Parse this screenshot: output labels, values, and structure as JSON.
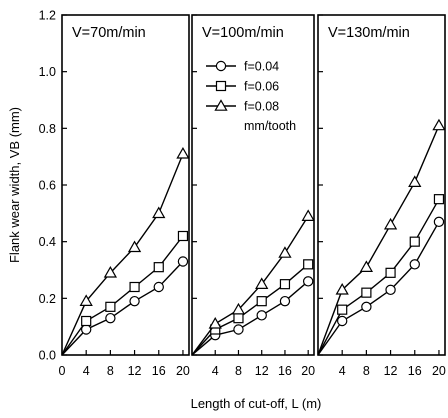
{
  "chart_data": {
    "type": "line",
    "ylabel": "Flank wear width, VB (mm)",
    "xlabel": "Length of cut-off, L (m)",
    "ylim": [
      0,
      1.2
    ],
    "yticks": [
      "0.0",
      "0.2",
      "0.4",
      "0.6",
      "0.8",
      "1.0",
      "1.2"
    ],
    "xlim": [
      0,
      21
    ],
    "xticks": [
      "0",
      "4",
      "8",
      "12",
      "16",
      "20"
    ],
    "grid": false,
    "legend": {
      "panel": 2,
      "placement": "top-left",
      "entries": [
        {
          "label": "f=0.04",
          "marker": "circle"
        },
        {
          "label": "f=0.06",
          "marker": "square"
        },
        {
          "label": "f=0.08",
          "marker": "triangle"
        }
      ],
      "unit_note": "mm/tooth"
    },
    "panels": [
      {
        "title": "V=70m/min",
        "series": [
          {
            "name": "f=0.04",
            "marker": "circle",
            "x": [
              0,
              4,
              8,
              12,
              16,
              20
            ],
            "y": [
              0,
              0.09,
              0.13,
              0.19,
              0.24,
              0.33
            ]
          },
          {
            "name": "f=0.06",
            "marker": "square",
            "x": [
              0,
              4,
              8,
              12,
              16,
              20
            ],
            "y": [
              0,
              0.12,
              0.17,
              0.24,
              0.31,
              0.42
            ]
          },
          {
            "name": "f=0.08",
            "marker": "triangle",
            "x": [
              0,
              4,
              8,
              12,
              16,
              20
            ],
            "y": [
              0,
              0.19,
              0.29,
              0.38,
              0.5,
              0.71
            ]
          }
        ]
      },
      {
        "title": "V=100m/min",
        "series": [
          {
            "name": "f=0.04",
            "marker": "circle",
            "x": [
              0,
              4,
              8,
              12,
              16,
              20
            ],
            "y": [
              0,
              0.07,
              0.09,
              0.14,
              0.19,
              0.26
            ]
          },
          {
            "name": "f=0.06",
            "marker": "square",
            "x": [
              0,
              4,
              8,
              12,
              16,
              20
            ],
            "y": [
              0,
              0.09,
              0.13,
              0.19,
              0.25,
              0.32
            ]
          },
          {
            "name": "f=0.08",
            "marker": "triangle",
            "x": [
              0,
              4,
              8,
              12,
              16,
              20
            ],
            "y": [
              0,
              0.11,
              0.16,
              0.25,
              0.36,
              0.49
            ]
          }
        ]
      },
      {
        "title": "V=130m/min",
        "series": [
          {
            "name": "f=0.04",
            "marker": "circle",
            "x": [
              0,
              4,
              8,
              12,
              16,
              20
            ],
            "y": [
              0,
              0.12,
              0.17,
              0.23,
              0.32,
              0.47
            ]
          },
          {
            "name": "f=0.06",
            "marker": "square",
            "x": [
              0,
              4,
              8,
              12,
              16,
              20
            ],
            "y": [
              0,
              0.16,
              0.22,
              0.29,
              0.4,
              0.55
            ]
          },
          {
            "name": "f=0.08",
            "marker": "triangle",
            "x": [
              0,
              4,
              8,
              12,
              16,
              20
            ],
            "y": [
              0,
              0.23,
              0.31,
              0.46,
              0.61,
              0.81
            ]
          }
        ]
      }
    ]
  }
}
